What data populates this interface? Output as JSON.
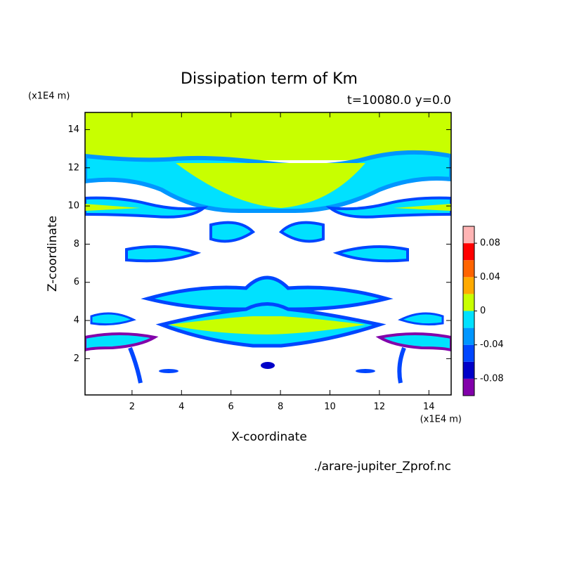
{
  "chart_data": {
    "type": "contour",
    "title": "Dissipation term of Km",
    "subtitle": "t=10080.0 y=0.0",
    "x_label": "X-coordinate",
    "y_label": "Z-coordinate",
    "x_unit": "(x1E4 m)",
    "y_unit": "(x1E4 m)",
    "footer": "./arare-jupiter_Zprof.nc",
    "xlim": [
      0.1,
      14.9
    ],
    "xticks": [
      2,
      4,
      6,
      8,
      10,
      12,
      14
    ],
    "ylim": [
      0.1,
      14.9
    ],
    "yticks": [
      2,
      4,
      6,
      8,
      10,
      12,
      14
    ],
    "colorbar": {
      "levels": [
        -0.1,
        -0.08,
        -0.06,
        -0.04,
        -0.02,
        0,
        0.02,
        0.04,
        0.06,
        0.08,
        0.1
      ],
      "colors": [
        "#8200aa",
        "#0000c8",
        "#0046ff",
        "#0096ff",
        "#00e1ff",
        "#c8ff00",
        "#ffaa00",
        "#ff6400",
        "#ff0000",
        "#ffb4b4"
      ],
      "ticks": [
        -0.08,
        -0.04,
        0,
        0.04,
        0.08
      ]
    }
  }
}
